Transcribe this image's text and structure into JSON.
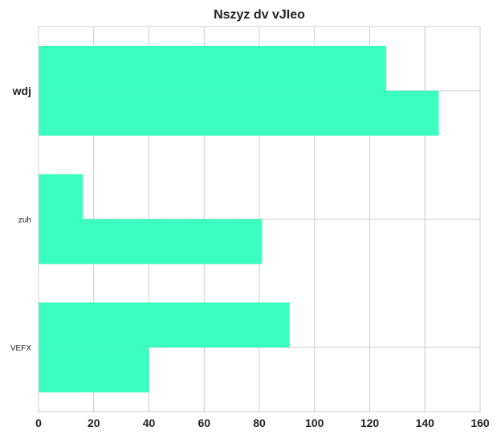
{
  "chart_data": {
    "type": "bar",
    "orientation": "horizontal",
    "title": "Nszyz dv vJIeo",
    "xlabel": "",
    "ylabel": "",
    "categories": [
      "wdj",
      "zuh",
      "VEFX"
    ],
    "category_label_emphasis": [
      "large-bold",
      "small",
      "small"
    ],
    "series": [
      {
        "values": [
          126,
          16,
          91
        ]
      },
      {
        "values": [
          145,
          81,
          40
        ]
      }
    ],
    "xlim": [
      0,
      160
    ],
    "xticks": [
      0,
      20,
      40,
      60,
      80,
      100,
      120,
      140,
      160
    ],
    "grid": true,
    "legend": "none",
    "colors": {
      "bar": "#3affc0",
      "grid": "#cccccc",
      "text": "#222222"
    }
  }
}
